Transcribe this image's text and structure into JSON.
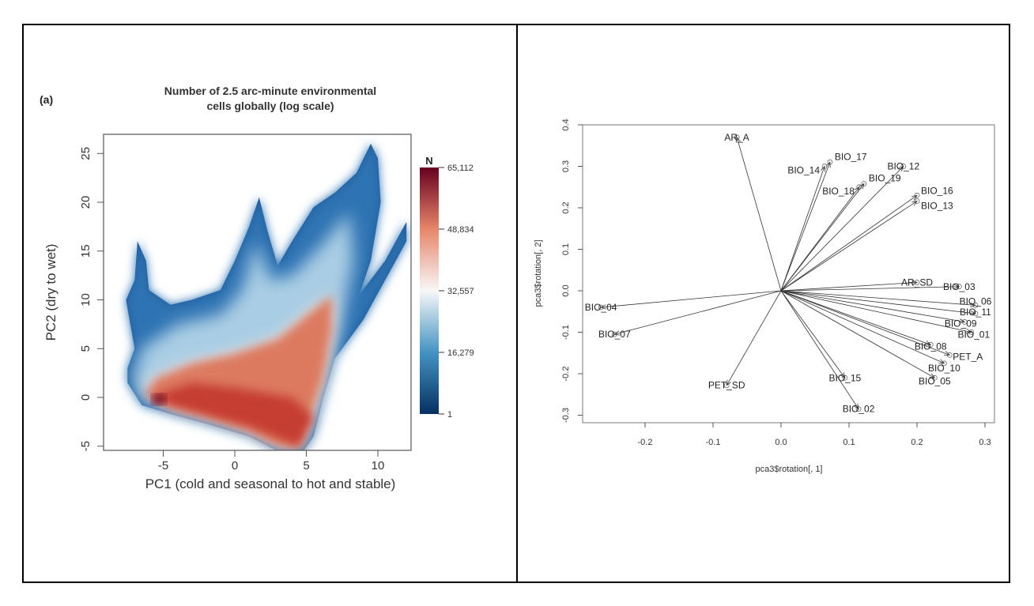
{
  "chart_data": [
    {
      "type": "heatmap",
      "panel_label": "(a)",
      "title": [
        "Number of 2.5 arc-minute environmental",
        "cells globally (log scale)"
      ],
      "xlabel": "PC1 (cold and seasonal to hot and stable)",
      "ylabel": "PC2 (dry to wet)",
      "xlim": [
        -9.3,
        12.3
      ],
      "ylim": [
        -5.5,
        27.6
      ],
      "xticks": [
        -5,
        0,
        5,
        10
      ],
      "yticks": [
        -5,
        0,
        5,
        10,
        15,
        20,
        25
      ],
      "colorbar": {
        "title": "N",
        "ticks": [
          "65,112",
          "48,834",
          "32,557",
          "16,279",
          "1"
        ],
        "colors": [
          "#67001f",
          "#d6604d",
          "#f7f7f7",
          "#4393c3",
          "#053061"
        ]
      },
      "regions": {
        "low_density_outline": [
          [
            -7.5,
            1.5
          ],
          [
            -7.5,
            3
          ],
          [
            -7,
            5
          ],
          [
            -7.6,
            10
          ],
          [
            -7,
            12
          ],
          [
            -6.8,
            16
          ],
          [
            -6.2,
            14
          ],
          [
            -6,
            11
          ],
          [
            -4.5,
            9.5
          ],
          [
            -3,
            10
          ],
          [
            -1,
            11
          ],
          [
            0,
            14
          ],
          [
            1,
            17.5
          ],
          [
            1.7,
            20.5
          ],
          [
            2.3,
            17
          ],
          [
            3,
            13.5
          ],
          [
            4,
            16
          ],
          [
            5.5,
            19.5
          ],
          [
            7,
            21
          ],
          [
            8.5,
            23
          ],
          [
            9.5,
            26
          ],
          [
            10,
            24.5
          ],
          [
            10.2,
            20
          ],
          [
            9.5,
            14
          ],
          [
            8.7,
            10.5
          ],
          [
            10.5,
            14
          ],
          [
            12,
            18
          ],
          [
            12,
            16
          ],
          [
            9,
            8
          ],
          [
            7,
            4
          ],
          [
            6.2,
            0
          ],
          [
            5.5,
            -4
          ],
          [
            4.8,
            -5.5
          ],
          [
            3,
            -5.5
          ],
          [
            1,
            -4
          ],
          [
            -2,
            -2.7
          ],
          [
            -4.5,
            -1.7
          ],
          [
            -6.5,
            -0.8
          ]
        ],
        "mid_density_outline": [
          [
            -7,
            2.5
          ],
          [
            -6.5,
            5
          ],
          [
            -4,
            7.5
          ],
          [
            -1,
            8.5
          ],
          [
            0.5,
            11
          ],
          [
            1.5,
            16
          ],
          [
            2.5,
            12
          ],
          [
            4,
            12.5
          ],
          [
            6,
            15.5
          ],
          [
            8,
            19
          ],
          [
            8.3,
            14
          ],
          [
            7.5,
            8
          ],
          [
            6.5,
            2
          ],
          [
            5.5,
            -3
          ],
          [
            4.6,
            -5.3
          ],
          [
            3,
            -5
          ],
          [
            1,
            -3.5
          ],
          [
            -2,
            -2.3
          ],
          [
            -4.5,
            -1.3
          ],
          [
            -6.5,
            -0.3
          ]
        ],
        "high_density_outline": [
          [
            -6.3,
            0.3
          ],
          [
            -5.5,
            2
          ],
          [
            -3,
            3.5
          ],
          [
            0,
            4.5
          ],
          [
            3,
            6
          ],
          [
            5.5,
            9
          ],
          [
            6.8,
            10.5
          ],
          [
            6.8,
            7
          ],
          [
            6.2,
            2
          ],
          [
            5.3,
            -2
          ],
          [
            4.5,
            -5.3
          ],
          [
            3,
            -5
          ],
          [
            1,
            -3.5
          ],
          [
            -2,
            -2.1
          ],
          [
            -4.5,
            -1.1
          ]
        ],
        "peak": [
          -5.3,
          -0.2
        ]
      }
    },
    {
      "type": "scatter",
      "subtype": "biplot-arrows",
      "xlabel": "pca3$rotation[, 1]",
      "ylabel": "pca3$rotation[, 2]",
      "xlim": [
        -0.29,
        0.31
      ],
      "ylim": [
        -0.32,
        0.4
      ],
      "xticks": [
        "-0.2",
        "-0.1",
        "0.0",
        "0.1",
        "0.2",
        "0.3"
      ],
      "yticks": [
        "-0.3",
        "-0.2",
        "-0.1",
        "0.0",
        "0.1",
        "0.2",
        "0.3",
        "0.4"
      ],
      "points": [
        {
          "label": "AR_A",
          "x": -0.065,
          "y": 0.37
        },
        {
          "label": "BIO_17",
          "x": 0.072,
          "y": 0.31
        },
        {
          "label": "BIO_14",
          "x": 0.064,
          "y": 0.3
        },
        {
          "label": "BIO_19",
          "x": 0.122,
          "y": 0.258
        },
        {
          "label": "BIO_18",
          "x": 0.115,
          "y": 0.25
        },
        {
          "label": "BIO_12",
          "x": 0.18,
          "y": 0.3
        },
        {
          "label": "BIO_16",
          "x": 0.2,
          "y": 0.23
        },
        {
          "label": "BIO_13",
          "x": 0.2,
          "y": 0.216
        },
        {
          "label": "AR_SD",
          "x": 0.2,
          "y": 0.02
        },
        {
          "label": "BIO_03",
          "x": 0.262,
          "y": 0.01
        },
        {
          "label": "BIO_06",
          "x": 0.286,
          "y": -0.035
        },
        {
          "label": "BIO_11",
          "x": 0.286,
          "y": -0.055
        },
        {
          "label": "BIO_09",
          "x": 0.27,
          "y": -0.075
        },
        {
          "label": "BIO_01",
          "x": 0.28,
          "y": -0.1
        },
        {
          "label": "BIO_08",
          "x": 0.22,
          "y": -0.13
        },
        {
          "label": "PET_A",
          "x": 0.248,
          "y": -0.155
        },
        {
          "label": "BIO_10",
          "x": 0.24,
          "y": -0.175
        },
        {
          "label": "BIO_05",
          "x": 0.226,
          "y": -0.21
        },
        {
          "label": "BIO_15",
          "x": 0.094,
          "y": -0.21
        },
        {
          "label": "BIO_02",
          "x": 0.114,
          "y": -0.285
        },
        {
          "label": "PET_SD",
          "x": -0.08,
          "y": -0.228
        },
        {
          "label": "BIO_04",
          "x": -0.265,
          "y": -0.04
        },
        {
          "label": "BIO_07",
          "x": -0.245,
          "y": -0.105
        }
      ]
    }
  ]
}
